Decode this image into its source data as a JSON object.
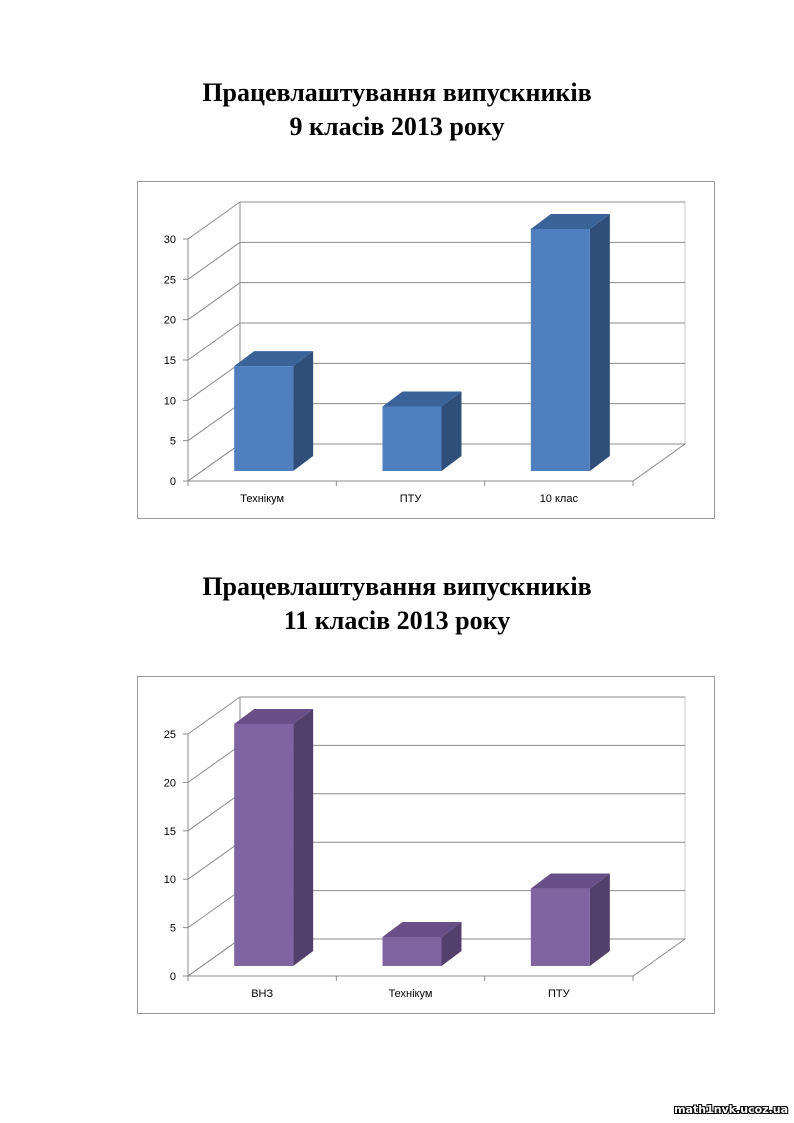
{
  "charts": [
    {
      "title_line1": "Працевлаштування випускників",
      "title_line2": "9 класів 2013 року"
    },
    {
      "title_line1": "Працевлаштування випускників",
      "title_line2": "11 класів 2013 року"
    }
  ],
  "chart_data": [
    {
      "type": "bar",
      "title": "Працевлаштування випускників 9 класів 2013 року",
      "categories": [
        "Технікум",
        "ПТУ",
        "10 клас"
      ],
      "values": [
        13,
        8,
        30
      ],
      "ylim": [
        0,
        30
      ],
      "yticks": [
        0,
        5,
        10,
        15,
        20,
        25,
        30
      ],
      "grid": true,
      "style": "3d-column",
      "colors": {
        "front": "#4f7fbe",
        "side": "#2f4e7a",
        "top": "#3a6399"
      }
    },
    {
      "type": "bar",
      "title": "Працевлаштування випускників 11 класів 2013 року",
      "categories": [
        "ВНЗ",
        "Технікум",
        "ПТУ"
      ],
      "values": [
        25,
        3,
        8
      ],
      "ylim": [
        0,
        25
      ],
      "yticks": [
        0,
        5,
        10,
        15,
        20,
        25
      ],
      "grid": true,
      "style": "3d-column",
      "colors": {
        "front": "#8064a2",
        "side": "#533f6c",
        "top": "#694f88"
      }
    }
  ],
  "watermark": "math1nvk.ucoz.ua"
}
